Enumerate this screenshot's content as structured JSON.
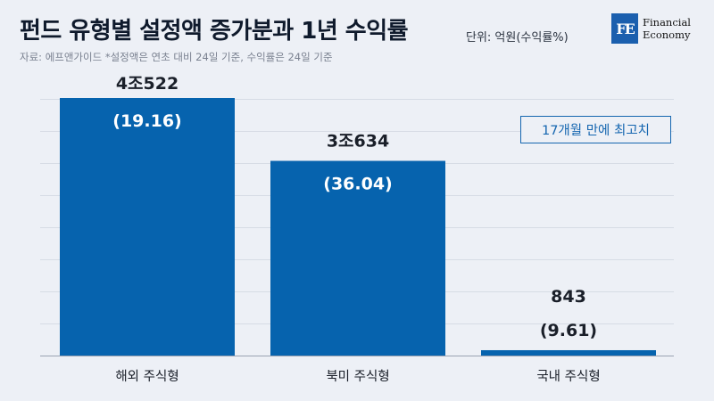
{
  "header": {
    "title": "펀드 유형별 설정액 증가분과 1년 수익률",
    "unit": "단위: 억원(수익률%)",
    "source": "자료: 에프앤가이드 *설정액은 연초 대비 24일 기준, 수익률은 24일 기준"
  },
  "logo": {
    "mark": "FE",
    "line1": "Financial",
    "line2": "Economy"
  },
  "callout": "17개월 만에 최고치",
  "colors": {
    "bar": "#0663ae",
    "background": "#edf0f6",
    "callout": "#1566b0"
  },
  "chart_data": {
    "type": "bar",
    "categories": [
      "해외 주식형",
      "북미 주식형",
      "국내 주식형"
    ],
    "values": [
      40522,
      30634,
      843
    ],
    "value_labels": [
      "4조522",
      "3조634",
      "843"
    ],
    "returns": [
      19.16,
      36.04,
      9.61
    ],
    "return_labels": [
      "(19.16)",
      "(36.04)",
      "(9.61)"
    ],
    "ylim": [
      0,
      45000
    ],
    "grid": true
  }
}
